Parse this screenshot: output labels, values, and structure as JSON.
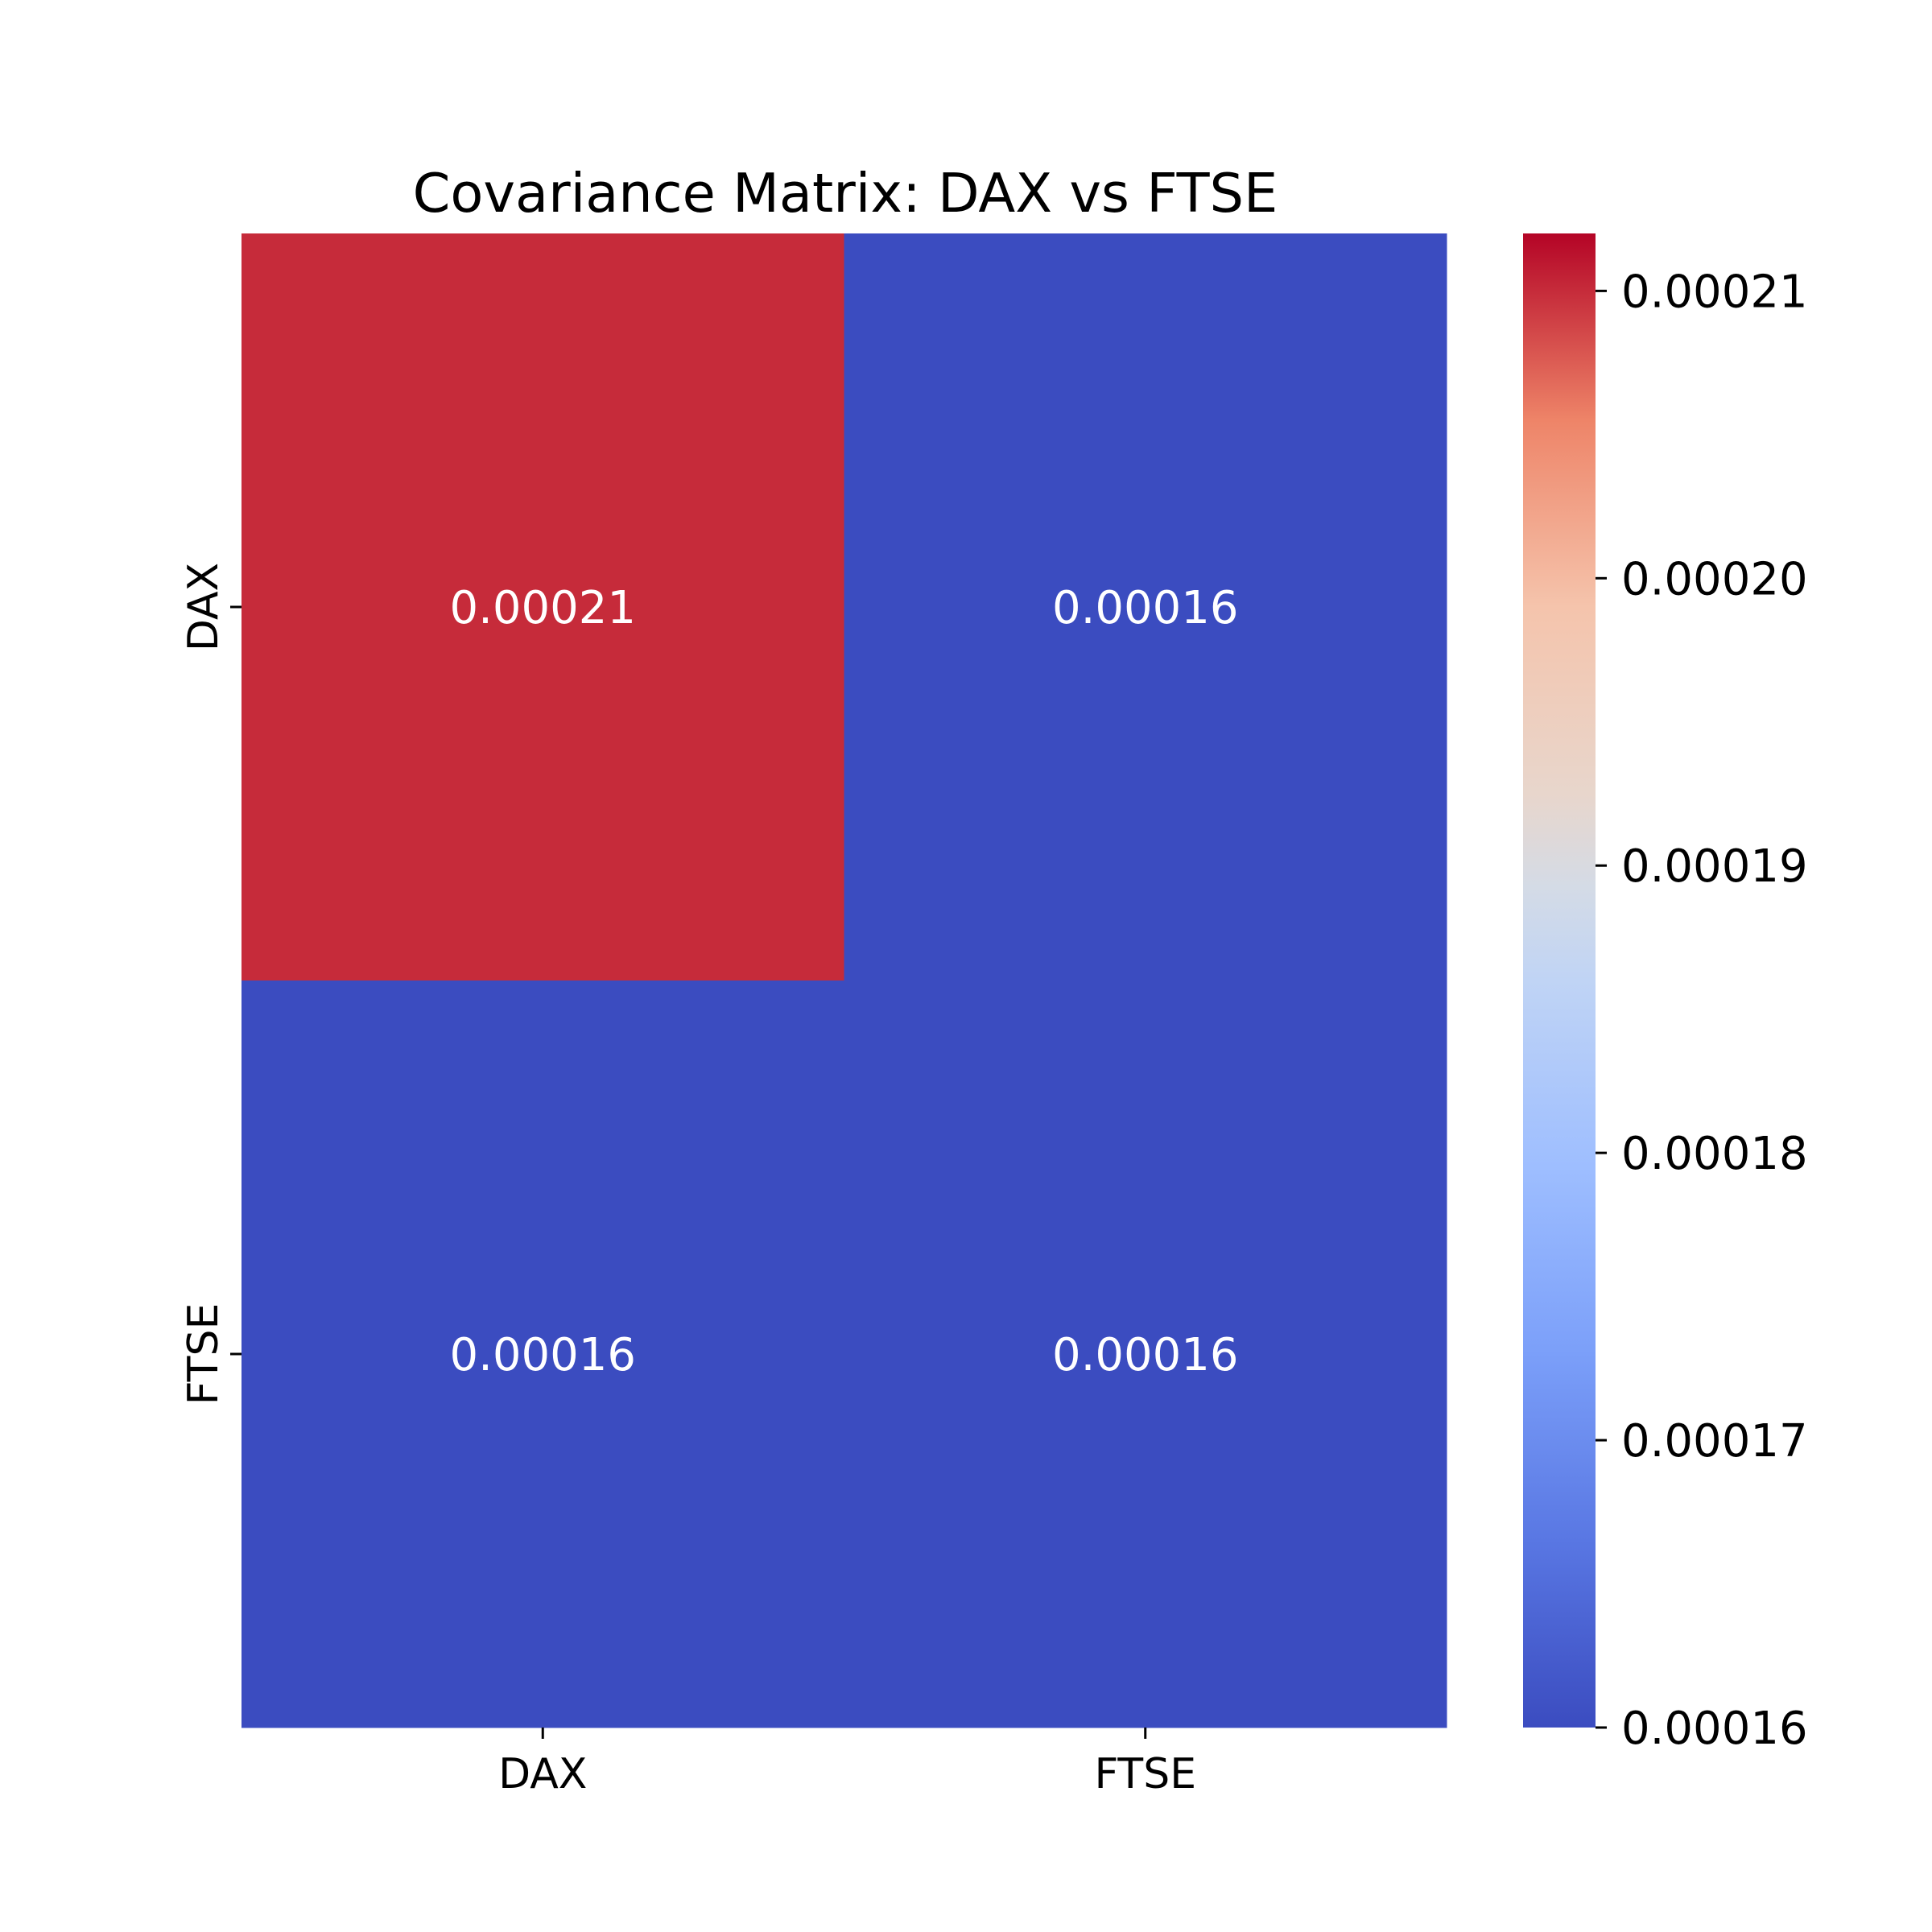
{
  "chart_data": {
    "type": "heatmap",
    "title": "Covariance Matrix: DAX vs FTSE",
    "x_categories": [
      "DAX",
      "FTSE"
    ],
    "y_categories": [
      "DAX",
      "FTSE"
    ],
    "values": [
      [
        0.00021,
        0.00016
      ],
      [
        0.00016,
        0.00016
      ]
    ],
    "cell_labels": [
      [
        "0.00021",
        "0.00016"
      ],
      [
        "0.00016",
        "0.00016"
      ]
    ],
    "colormap": "coolwarm",
    "colors": {
      "low": "#3b4cc0",
      "high": "#b40426"
    },
    "colorbar": {
      "range": [
        0.00016,
        0.000212
      ],
      "tick_values": [
        0.00021,
        0.0002,
        0.00019,
        0.00018,
        0.00017,
        0.00016
      ],
      "tick_labels": [
        "0.00021",
        "0.00020",
        "0.00019",
        "0.00018",
        "0.00017",
        "0.00016"
      ]
    },
    "grid": false,
    "legend": "colorbar-right"
  }
}
